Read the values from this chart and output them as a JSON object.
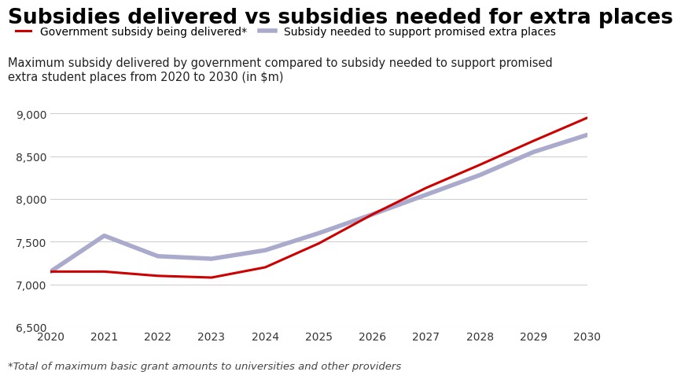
{
  "title": "Subsidies delivered vs subsidies needed for extra places",
  "subtitle": "Maximum subsidy delivered by government compared to subsidy needed to support promised\nextra student places from 2020 to 2030 (in $m)",
  "footnote": "*Total of maximum basic grant amounts to universities and other providers",
  "years": [
    2020,
    2021,
    2022,
    2023,
    2024,
    2025,
    2026,
    2027,
    2028,
    2029,
    2030
  ],
  "gov_subsidy": [
    7150,
    7150,
    7100,
    7080,
    7200,
    7480,
    7820,
    8130,
    8400,
    8680,
    8950
  ],
  "needed_subsidy": [
    7150,
    7570,
    7330,
    7300,
    7400,
    7600,
    7820,
    8050,
    8280,
    8550,
    8750
  ],
  "gov_color": "#cc0000",
  "needed_color": "#aaaacc",
  "gov_label": "Government subsidy being delivered*",
  "needed_label": "Subsidy needed to support promised extra places",
  "ylim": [
    6500,
    9100
  ],
  "yticks": [
    6500,
    7000,
    7500,
    8000,
    8500,
    9000
  ],
  "background_color": "#ffffff",
  "title_fontsize": 19,
  "subtitle_fontsize": 10.5,
  "footnote_fontsize": 9.5,
  "axis_fontsize": 10,
  "legend_fontsize": 10,
  "gov_linewidth": 2.2,
  "needed_linewidth": 4.0
}
